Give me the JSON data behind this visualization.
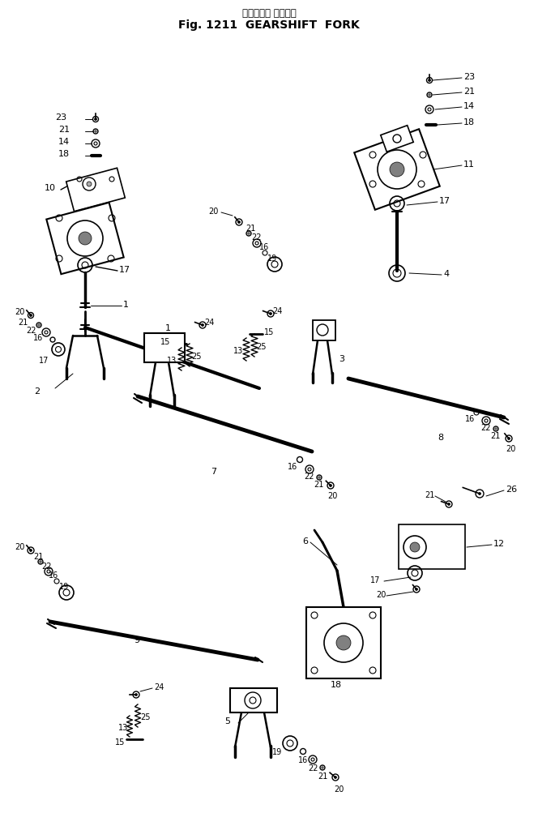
{
  "title_jp": "ギヤシフト フォーク",
  "title_en": "Fig. 1211  GEARSHIFT  FORK",
  "bg_color": "#ffffff",
  "line_color": "#000000",
  "text_color": "#000000",
  "figsize": [
    6.64,
    10.04
  ],
  "dpi": 100
}
